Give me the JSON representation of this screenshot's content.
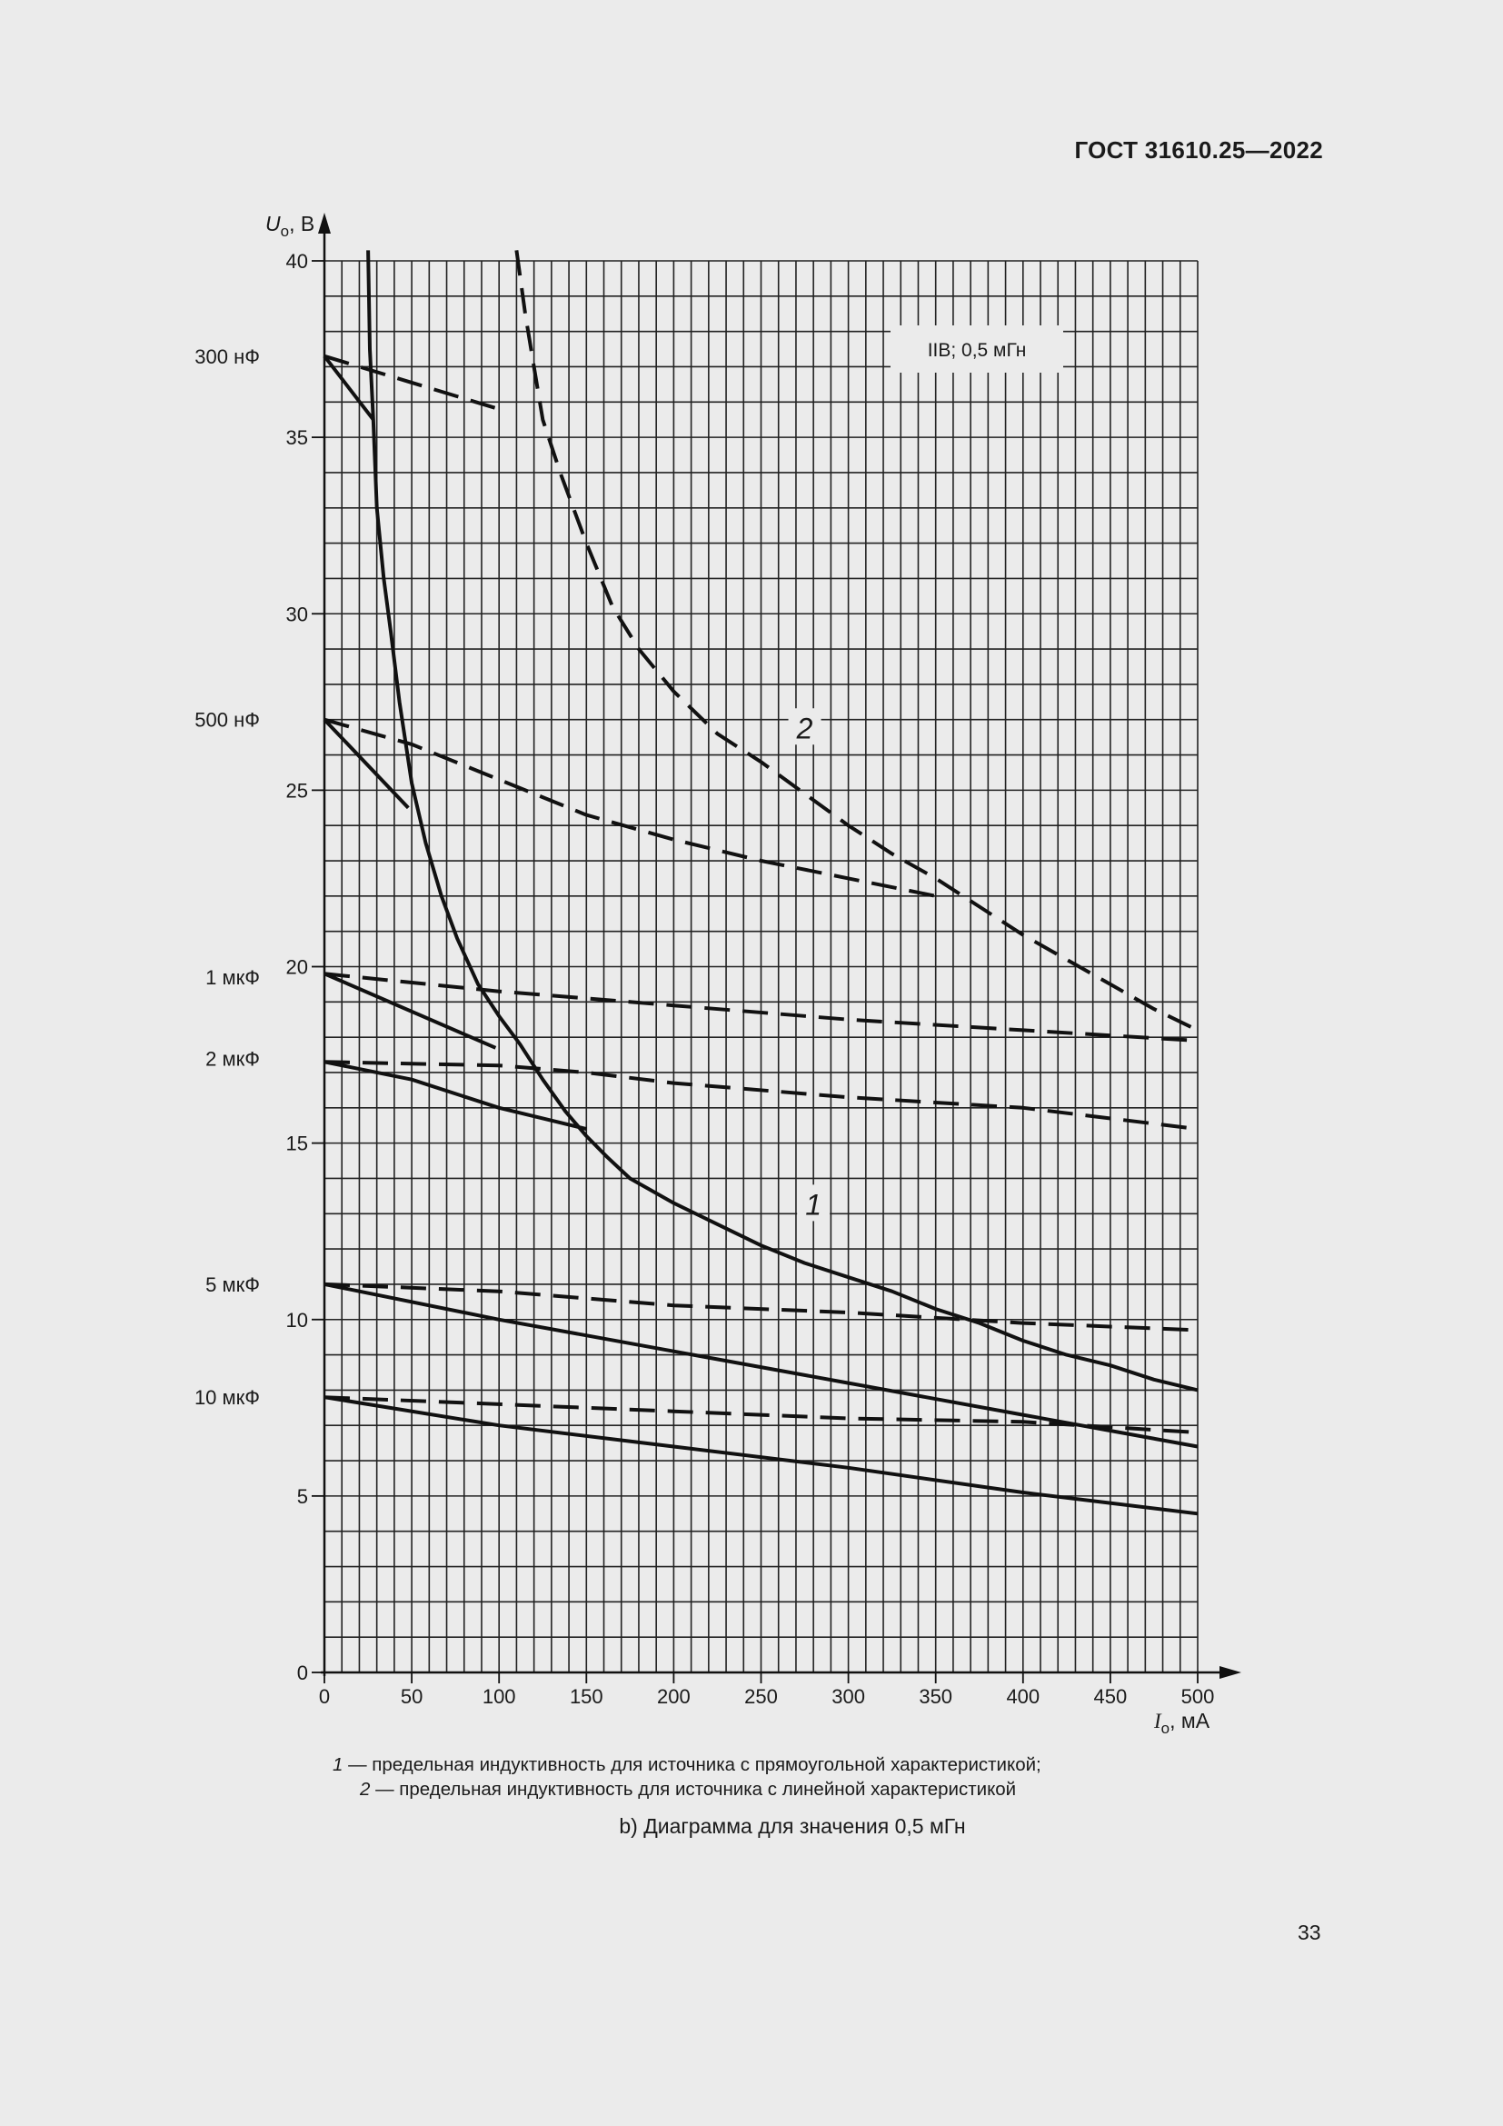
{
  "header": {
    "doc_id": "ГОСТ 31610.25—2022"
  },
  "page": {
    "number": "33"
  },
  "chart_data": {
    "type": "line",
    "title": "b) Диаграмма для значения 0,5 мГн",
    "annotation_box": "IIB; 0,5 мГн",
    "xlabel": "I_o, мА",
    "ylabel": "U_o, В",
    "xlim": [
      0,
      500
    ],
    "ylim": [
      0,
      40
    ],
    "x_ticks": [
      0,
      50,
      100,
      150,
      200,
      250,
      300,
      350,
      400,
      450,
      500
    ],
    "y_ticks": [
      0,
      5,
      10,
      15,
      20,
      25,
      30,
      35,
      40
    ],
    "grid": {
      "x_minor_step": 10,
      "y_minor_step": 1
    },
    "capacitance_labels": [
      {
        "label": "300 нФ",
        "u": 37.3
      },
      {
        "label": "500 нФ",
        "u": 27.0
      },
      {
        "label": "1 мкФ",
        "u": 19.7
      },
      {
        "label": "2 мкФ",
        "u": 17.4
      },
      {
        "label": "5 мкФ",
        "u": 11.0
      },
      {
        "label": "10 мкФ",
        "u": 7.8
      }
    ],
    "curve_labels": [
      {
        "label": "1",
        "x": 280,
        "y": 13.1
      },
      {
        "label": "2",
        "x": 275,
        "y": 26.6
      }
    ],
    "series": [
      {
        "name": "1 — предельная индуктивность для источника с прямоугольной характеристикой",
        "style": "solid",
        "points": [
          [
            25,
            40.3
          ],
          [
            26,
            37.5
          ],
          [
            28,
            35.5
          ],
          [
            30,
            33.0
          ],
          [
            34,
            31.0
          ],
          [
            38,
            29.5
          ],
          [
            43,
            27.5
          ],
          [
            50,
            25.2
          ],
          [
            58,
            23.5
          ],
          [
            67,
            22.0
          ],
          [
            76,
            20.8
          ],
          [
            88,
            19.5
          ],
          [
            100,
            18.6
          ],
          [
            112,
            17.8
          ],
          [
            125,
            16.8
          ],
          [
            138,
            15.9
          ],
          [
            150,
            15.2
          ],
          [
            162,
            14.6
          ],
          [
            175,
            14.0
          ],
          [
            200,
            13.3
          ],
          [
            225,
            12.7
          ],
          [
            250,
            12.1
          ],
          [
            275,
            11.6
          ],
          [
            300,
            11.2
          ],
          [
            325,
            10.8
          ],
          [
            350,
            10.3
          ],
          [
            375,
            9.9
          ],
          [
            400,
            9.4
          ],
          [
            425,
            9.0
          ],
          [
            450,
            8.7
          ],
          [
            475,
            8.3
          ],
          [
            500,
            8.0
          ]
        ]
      },
      {
        "name": "2 — предельная индуктивность для источника с линейной характеристикой",
        "style": "dashed",
        "points": [
          [
            110,
            40.3
          ],
          [
            115,
            38.5
          ],
          [
            120,
            37.0
          ],
          [
            125,
            35.5
          ],
          [
            135,
            34.0
          ],
          [
            150,
            32.0
          ],
          [
            165,
            30.2
          ],
          [
            180,
            29.0
          ],
          [
            200,
            27.8
          ],
          [
            225,
            26.6
          ],
          [
            250,
            25.8
          ],
          [
            275,
            24.9
          ],
          [
            300,
            24.0
          ],
          [
            325,
            23.2
          ],
          [
            350,
            22.5
          ],
          [
            375,
            21.7
          ],
          [
            400,
            20.9
          ],
          [
            425,
            20.2
          ],
          [
            450,
            19.5
          ],
          [
            475,
            18.8
          ],
          [
            500,
            18.2
          ]
        ]
      },
      {
        "name": "300 нФ (прямоуг.)",
        "style": "solid",
        "points": [
          [
            0,
            37.3
          ],
          [
            28,
            35.5
          ]
        ]
      },
      {
        "name": "300 нФ (лин.)",
        "style": "dashed",
        "points": [
          [
            0,
            37.3
          ],
          [
            100,
            35.8
          ]
        ]
      },
      {
        "name": "500 нФ (прямоуг.)",
        "style": "solid",
        "points": [
          [
            0,
            27.0
          ],
          [
            48,
            24.5
          ]
        ]
      },
      {
        "name": "500 нФ (лин.)",
        "style": "dashed",
        "points": [
          [
            0,
            27.0
          ],
          [
            50,
            26.3
          ],
          [
            100,
            25.3
          ],
          [
            150,
            24.3
          ],
          [
            200,
            23.6
          ],
          [
            250,
            23.0
          ],
          [
            300,
            22.5
          ],
          [
            350,
            22.0
          ]
        ]
      },
      {
        "name": "1 мкФ (прямоуг.)",
        "style": "solid",
        "points": [
          [
            0,
            19.8
          ],
          [
            98,
            17.7
          ]
        ]
      },
      {
        "name": "1 мкФ (лин.)",
        "style": "dashed",
        "points": [
          [
            0,
            19.8
          ],
          [
            100,
            19.3
          ],
          [
            200,
            18.9
          ],
          [
            300,
            18.5
          ],
          [
            400,
            18.2
          ],
          [
            500,
            17.9
          ]
        ]
      },
      {
        "name": "2 мкФ (прямоуг.)",
        "style": "solid",
        "points": [
          [
            0,
            17.3
          ],
          [
            50,
            16.8
          ],
          [
            100,
            16.0
          ],
          [
            150,
            15.4
          ]
        ]
      },
      {
        "name": "2 мкФ (лин.)",
        "style": "dashed",
        "points": [
          [
            0,
            17.3
          ],
          [
            100,
            17.2
          ],
          [
            150,
            17.0
          ],
          [
            200,
            16.7
          ],
          [
            300,
            16.3
          ],
          [
            400,
            16.0
          ],
          [
            500,
            15.4
          ]
        ]
      },
      {
        "name": "5 мкФ (прямоуг.)",
        "style": "solid",
        "points": [
          [
            0,
            11.0
          ],
          [
            100,
            10.0
          ],
          [
            200,
            9.1
          ],
          [
            300,
            8.2
          ],
          [
            400,
            7.3
          ],
          [
            500,
            6.4
          ]
        ]
      },
      {
        "name": "5 мкФ (лин.)",
        "style": "dashed",
        "points": [
          [
            0,
            11.0
          ],
          [
            100,
            10.8
          ],
          [
            150,
            10.6
          ],
          [
            200,
            10.4
          ],
          [
            300,
            10.2
          ],
          [
            400,
            9.9
          ],
          [
            500,
            9.7
          ]
        ]
      },
      {
        "name": "10 мкФ (прямоуг.)",
        "style": "solid",
        "points": [
          [
            0,
            7.8
          ],
          [
            100,
            7.0
          ],
          [
            200,
            6.4
          ],
          [
            300,
            5.8
          ],
          [
            400,
            5.1
          ],
          [
            500,
            4.5
          ]
        ]
      },
      {
        "name": "10 мкФ (лин.)",
        "style": "dashed",
        "points": [
          [
            0,
            7.8
          ],
          [
            100,
            7.6
          ],
          [
            200,
            7.4
          ],
          [
            300,
            7.2
          ],
          [
            400,
            7.1
          ],
          [
            500,
            6.8
          ]
        ]
      }
    ]
  },
  "legend": {
    "item1_num": "1",
    "item1_text": " — предельная индуктивность для источника с прямоугольной характеристикой;",
    "item2_num": "2",
    "item2_text": " — предельная индуктивность для источника с линейной характеристикой"
  },
  "axis_labels": {
    "y_symbol": "U",
    "y_sub": "o",
    "y_unit": ", В",
    "x_symbol": "I",
    "x_sub": "o",
    "x_unit": ", мА"
  }
}
